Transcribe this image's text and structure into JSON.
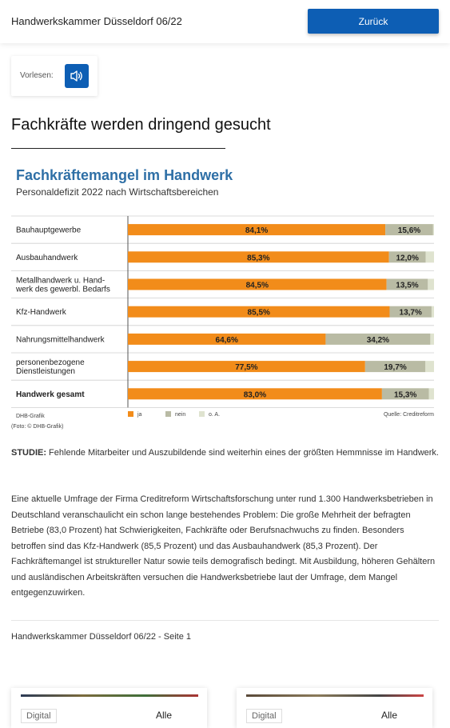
{
  "header": {
    "title": "Handwerkskammer Düsseldorf 06/22",
    "back_label": "Zurück"
  },
  "vorlesen": {
    "label": "Vorlesen:",
    "icon": "speaker-icon"
  },
  "article": {
    "headline": "Fachkräfte werden dringend gesucht",
    "paragraph1_lead": "STUDIE:",
    "paragraph1": " Fehlende Mitarbeiter und Auszubildende sind weiterhin eines der größten Hemmnisse im Handwerk.",
    "paragraph2": "Eine aktuelle Umfrage der Firma Creditreform Wirtschaftsforschung unter rund 1.300 Handwerksbetrieben in Deutschland veranschaulicht ein schon lange bestehendes Problem: Die große Mehrheit der befragten Betriebe (83,0 Prozent) hat Schwierigkeiten, Fachkräfte oder Berufsnachwuchs zu finden. Besonders betroffen sind das Kfz-Handwerk (85,5 Prozent) und das Ausbauhandwerk (85,3 Prozent). Der Fachkräftemangel ist struktureller Natur sowie teils demografisch bedingt. Mit Ausbildung, höheren Gehältern und ausländischen Arbeitskräften versuchen die Handwerksbetriebe laut der Umfrage, dem Mangel entgegenzuwirken."
  },
  "footer": {
    "page_label": "Handwerkskammer Düsseldorf 06/22 - Seite 1"
  },
  "cards": [
    {
      "tag": "Digital",
      "all_label": "Alle"
    },
    {
      "tag": "Digital",
      "all_label": "Alle"
    }
  ],
  "colors": {
    "accent": "#0d5eb4",
    "ja": "#f28c1a",
    "nein": "#b9bba4",
    "oa": "#dfe3cf",
    "chart_title": "#2e6fa6"
  },
  "chart_data": {
    "type": "bar",
    "stacked": true,
    "orientation": "horizontal",
    "title": "Fachkräftemangel im Handwerk",
    "subtitle": "Personaldefizit 2022 nach Wirtschaftsbereichen",
    "categories": [
      [
        "Bauhauptgewerbe"
      ],
      [
        "Ausbauhandwerk"
      ],
      [
        "Metallhandwerk u. Hand-",
        "werk des gewerbl. Bedarfs"
      ],
      [
        "Kfz-Handwerk"
      ],
      [
        "Nahrungsmittelhandwerk"
      ],
      [
        "personenbezogene",
        "Dienstleistungen"
      ],
      [
        "Handwerk gesamt"
      ]
    ],
    "bold_category_index": 6,
    "series": [
      {
        "name": "ja",
        "values": [
          84.1,
          85.3,
          84.5,
          85.5,
          64.6,
          77.5,
          83.0
        ],
        "labels": [
          "84,1%",
          "85,3%",
          "84,5%",
          "85,5%",
          "64,6%",
          "77,5%",
          "83,0%"
        ]
      },
      {
        "name": "nein",
        "values": [
          15.6,
          12.0,
          13.5,
          13.7,
          34.2,
          19.7,
          15.3
        ],
        "labels": [
          "15,6%",
          "12,0%",
          "13,5%",
          "13,7%",
          "34,2%",
          "19,7%",
          "15,3%"
        ]
      },
      {
        "name": "o. A.",
        "values": [
          0.3,
          2.7,
          2.0,
          0.8,
          1.2,
          2.8,
          1.7
        ]
      }
    ],
    "xlim": [
      0,
      100
    ],
    "legend_position": "bottom",
    "source_left": "DHB-Grafik",
    "source_right": "Quelle: Creditreform",
    "photo_credit": "(Foto: © DHB-Grafik)"
  }
}
